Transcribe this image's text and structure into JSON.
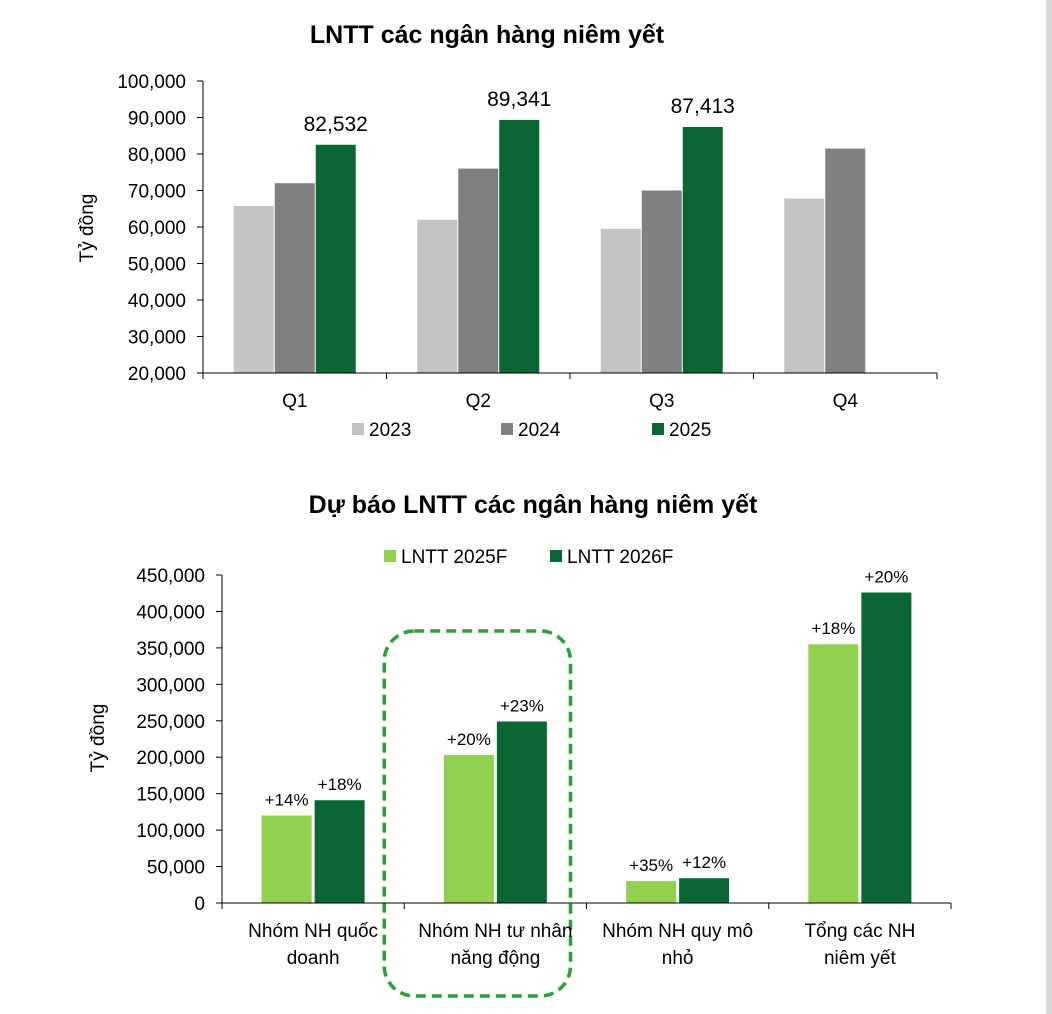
{
  "chart_data": [
    {
      "type": "bar",
      "title": "LNTT các ngân hàng niêm yết",
      "ylabel": "Tỷ đồng",
      "xlabel": "",
      "ylim": [
        20000,
        100000
      ],
      "yticks": [
        20000,
        30000,
        40000,
        50000,
        60000,
        70000,
        80000,
        90000,
        100000
      ],
      "ytick_labels": [
        "20,000",
        "30,000",
        "40,000",
        "50,000",
        "60,000",
        "70,000",
        "80,000",
        "90,000",
        "100,000"
      ],
      "categories": [
        "Q1",
        "Q2",
        "Q3",
        "Q4"
      ],
      "series": [
        {
          "name": "2023",
          "color": "#c3c3c3",
          "values": [
            65800,
            62000,
            59500,
            67800
          ]
        },
        {
          "name": "2024",
          "color": "#808080",
          "values": [
            72000,
            76000,
            70000,
            81500
          ]
        },
        {
          "name": "2025",
          "color": "#0a6633",
          "values": [
            82532,
            89341,
            87413,
            null
          ]
        }
      ],
      "data_labels": {
        "series": "2025",
        "labels": [
          "82,532",
          "89,341",
          "87,413",
          ""
        ]
      },
      "legend": "bottom"
    },
    {
      "type": "bar",
      "title": "Dự báo LNTT các ngân hàng niêm yết",
      "ylabel": "Tỷ đồng",
      "xlabel": "",
      "ylim": [
        0,
        450000
      ],
      "yticks": [
        0,
        50000,
        100000,
        150000,
        200000,
        250000,
        300000,
        350000,
        400000,
        450000
      ],
      "ytick_labels": [
        "0",
        "50,000",
        "100,000",
        "150,000",
        "200,000",
        "250,000",
        "300,000",
        "350,000",
        "400,000",
        "450,000"
      ],
      "categories": [
        [
          "Nhóm NH quốc",
          "doanh"
        ],
        [
          "Nhóm NH tư nhân",
          "năng động"
        ],
        [
          "Nhóm NH quy mô",
          "nhỏ"
        ],
        [
          "Tổng các NH",
          "niêm yết"
        ]
      ],
      "series": [
        {
          "name": "LNTT 2025F",
          "color": "#92d050",
          "values": [
            120000,
            203000,
            30000,
            355000
          ],
          "labels": [
            "+14%",
            "+20%",
            "+35%",
            "+18%"
          ]
        },
        {
          "name": "LNTT 2026F",
          "color": "#0a6633",
          "values": [
            141000,
            249000,
            34000,
            426000
          ],
          "labels": [
            "+18%",
            "+23%",
            "+12%",
            "+20%"
          ]
        }
      ],
      "highlight_category": 1,
      "highlight_color": "#2e9e3a",
      "legend": "top"
    }
  ]
}
